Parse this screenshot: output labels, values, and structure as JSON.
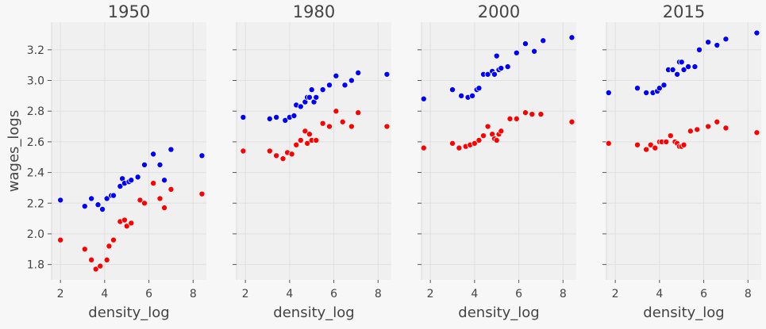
{
  "chart_data": {
    "type": "scatter",
    "xlabel": "density_log",
    "ylabel": "wages_logs",
    "shared_y": true,
    "xlim": [
      1.6,
      8.6
    ],
    "ylim": [
      1.7,
      3.38
    ],
    "x_ticks": [
      2,
      4,
      6,
      8
    ],
    "y_ticks": [
      1.8,
      2.0,
      2.2,
      2.4,
      2.6,
      2.8,
      3.0,
      3.2
    ],
    "y_tick_labels": [
      "1.8",
      "2.0",
      "2.2",
      "2.4",
      "2.6",
      "2.8",
      "3.0",
      "3.2"
    ],
    "grid": true,
    "colors": {
      "blue": "#0000ff",
      "red": "#ff0000"
    },
    "panels": [
      {
        "title": "1950",
        "series": [
          {
            "color": "blue",
            "points": [
              [
                2.0,
                2.22
              ],
              [
                3.1,
                2.18
              ],
              [
                3.4,
                2.23
              ],
              [
                3.7,
                2.19
              ],
              [
                3.9,
                2.16
              ],
              [
                4.1,
                2.23
              ],
              [
                4.3,
                2.25
              ],
              [
                4.4,
                2.25
              ],
              [
                4.7,
                2.31
              ],
              [
                4.8,
                2.36
              ],
              [
                4.9,
                2.33
              ],
              [
                5.1,
                2.34
              ],
              [
                5.2,
                2.35
              ],
              [
                5.5,
                2.37
              ],
              [
                5.8,
                2.45
              ],
              [
                6.2,
                2.52
              ],
              [
                6.5,
                2.45
              ],
              [
                6.7,
                2.35
              ],
              [
                7.0,
                2.55
              ],
              [
                8.4,
                2.51
              ]
            ]
          },
          {
            "color": "red",
            "points": [
              [
                2.0,
                1.96
              ],
              [
                3.1,
                1.9
              ],
              [
                3.4,
                1.83
              ],
              [
                3.6,
                1.77
              ],
              [
                3.8,
                1.79
              ],
              [
                4.1,
                1.83
              ],
              [
                4.2,
                1.92
              ],
              [
                4.4,
                1.96
              ],
              [
                4.7,
                2.08
              ],
              [
                4.9,
                2.09
              ],
              [
                5.0,
                2.05
              ],
              [
                5.2,
                2.07
              ],
              [
                5.6,
                2.22
              ],
              [
                5.8,
                2.2
              ],
              [
                6.2,
                2.33
              ],
              [
                6.5,
                2.23
              ],
              [
                6.7,
                2.17
              ],
              [
                7.0,
                2.29
              ],
              [
                8.4,
                2.26
              ]
            ]
          }
        ]
      },
      {
        "title": "1980",
        "series": [
          {
            "color": "blue",
            "points": [
              [
                1.9,
                2.76
              ],
              [
                3.1,
                2.75
              ],
              [
                3.4,
                2.76
              ],
              [
                3.8,
                2.74
              ],
              [
                4.0,
                2.76
              ],
              [
                4.2,
                2.77
              ],
              [
                4.3,
                2.84
              ],
              [
                4.5,
                2.83
              ],
              [
                4.7,
                2.86
              ],
              [
                4.8,
                2.89
              ],
              [
                4.9,
                2.89
              ],
              [
                5.0,
                2.94
              ],
              [
                5.1,
                2.86
              ],
              [
                5.2,
                2.89
              ],
              [
                5.5,
                2.94
              ],
              [
                5.8,
                2.97
              ],
              [
                6.1,
                3.03
              ],
              [
                6.5,
                2.97
              ],
              [
                6.8,
                3.0
              ],
              [
                7.1,
                3.05
              ],
              [
                8.4,
                3.04
              ]
            ]
          },
          {
            "color": "red",
            "points": [
              [
                1.9,
                2.54
              ],
              [
                3.1,
                2.54
              ],
              [
                3.4,
                2.51
              ],
              [
                3.7,
                2.49
              ],
              [
                3.9,
                2.53
              ],
              [
                4.1,
                2.52
              ],
              [
                4.3,
                2.58
              ],
              [
                4.5,
                2.61
              ],
              [
                4.7,
                2.67
              ],
              [
                4.8,
                2.59
              ],
              [
                4.9,
                2.65
              ],
              [
                5.0,
                2.61
              ],
              [
                5.2,
                2.61
              ],
              [
                5.5,
                2.72
              ],
              [
                5.8,
                2.7
              ],
              [
                6.1,
                2.8
              ],
              [
                6.4,
                2.73
              ],
              [
                6.8,
                2.7
              ],
              [
                7.1,
                2.79
              ],
              [
                8.4,
                2.7
              ]
            ]
          }
        ]
      },
      {
        "title": "2000",
        "series": [
          {
            "color": "blue",
            "points": [
              [
                1.7,
                2.88
              ],
              [
                3.0,
                2.94
              ],
              [
                3.4,
                2.9
              ],
              [
                3.7,
                2.89
              ],
              [
                3.9,
                2.9
              ],
              [
                4.1,
                2.94
              ],
              [
                4.2,
                2.95
              ],
              [
                4.4,
                3.04
              ],
              [
                4.6,
                3.04
              ],
              [
                4.8,
                3.06
              ],
              [
                4.9,
                3.04
              ],
              [
                5.0,
                3.16
              ],
              [
                5.1,
                3.07
              ],
              [
                5.2,
                3.08
              ],
              [
                5.5,
                3.09
              ],
              [
                5.9,
                3.18
              ],
              [
                6.3,
                3.24
              ],
              [
                6.7,
                3.19
              ],
              [
                7.1,
                3.26
              ],
              [
                8.4,
                3.28
              ]
            ]
          },
          {
            "color": "red",
            "points": [
              [
                1.7,
                2.56
              ],
              [
                3.0,
                2.59
              ],
              [
                3.3,
                2.56
              ],
              [
                3.6,
                2.57
              ],
              [
                3.8,
                2.58
              ],
              [
                4.0,
                2.59
              ],
              [
                4.2,
                2.61
              ],
              [
                4.4,
                2.64
              ],
              [
                4.6,
                2.7
              ],
              [
                4.8,
                2.65
              ],
              [
                4.9,
                2.62
              ],
              [
                5.0,
                2.61
              ],
              [
                5.1,
                2.65
              ],
              [
                5.2,
                2.67
              ],
              [
                5.6,
                2.75
              ],
              [
                5.9,
                2.75
              ],
              [
                6.3,
                2.79
              ],
              [
                6.6,
                2.78
              ],
              [
                7.0,
                2.78
              ],
              [
                8.4,
                2.73
              ]
            ]
          }
        ]
      },
      {
        "title": "2015",
        "series": [
          {
            "color": "blue",
            "points": [
              [
                1.7,
                2.92
              ],
              [
                3.0,
                2.95
              ],
              [
                3.4,
                2.92
              ],
              [
                3.7,
                2.92
              ],
              [
                3.9,
                2.93
              ],
              [
                4.0,
                2.95
              ],
              [
                4.2,
                2.97
              ],
              [
                4.4,
                3.07
              ],
              [
                4.6,
                3.07
              ],
              [
                4.8,
                3.04
              ],
              [
                4.9,
                3.12
              ],
              [
                5.0,
                3.12
              ],
              [
                5.1,
                3.07
              ],
              [
                5.3,
                3.09
              ],
              [
                5.6,
                3.09
              ],
              [
                5.8,
                3.2
              ],
              [
                6.2,
                3.25
              ],
              [
                6.6,
                3.23
              ],
              [
                7.0,
                3.27
              ],
              [
                8.4,
                3.31
              ]
            ]
          },
          {
            "color": "red",
            "points": [
              [
                1.7,
                2.59
              ],
              [
                3.0,
                2.58
              ],
              [
                3.4,
                2.55
              ],
              [
                3.6,
                2.58
              ],
              [
                3.8,
                2.56
              ],
              [
                4.0,
                2.6
              ],
              [
                4.1,
                2.6
              ],
              [
                4.3,
                2.6
              ],
              [
                4.5,
                2.64
              ],
              [
                4.7,
                2.6
              ],
              [
                4.8,
                2.59
              ],
              [
                4.9,
                2.57
              ],
              [
                5.0,
                2.57
              ],
              [
                5.1,
                2.58
              ],
              [
                5.4,
                2.67
              ],
              [
                5.7,
                2.68
              ],
              [
                6.2,
                2.7
              ],
              [
                6.6,
                2.73
              ],
              [
                7.0,
                2.69
              ],
              [
                8.4,
                2.66
              ]
            ]
          }
        ]
      }
    ]
  }
}
